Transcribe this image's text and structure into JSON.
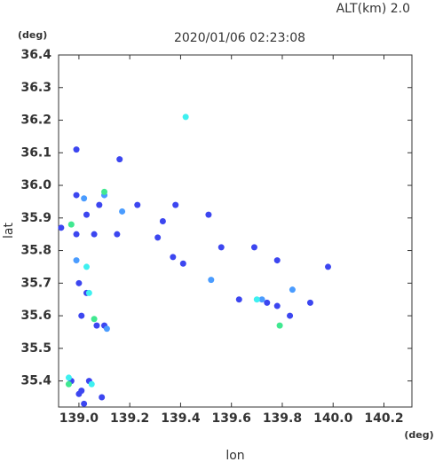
{
  "chart_data": {
    "type": "scatter",
    "title": "2020/01/06 02:23:08",
    "subtitle": "ALT(km) 2.0",
    "y_unit": "(deg)",
    "x_unit": "(deg)",
    "xlabel": "lon",
    "ylabel": "lat",
    "xlim": [
      138.92,
      140.31
    ],
    "ylim": [
      35.32,
      36.4
    ],
    "xticks": [
      {
        "value": 139,
        "label": "139.0"
      },
      139.2,
      139.4,
      139.6,
      139.8,
      {
        "value": 140,
        "label": "140.0"
      },
      140.2
    ],
    "yticks": [
      35.4,
      35.5,
      35.6,
      35.7,
      35.8,
      35.9,
      {
        "value": 36,
        "label": "36.0"
      },
      36.1,
      36.2,
      36.3,
      36.4
    ],
    "series": [
      {
        "color": "#3c46f0",
        "x": [
          138.99,
          138.99,
          139.03,
          138.93,
          138.99,
          139.06,
          139.0,
          139.03,
          139.01,
          139.07,
          139.1,
          138.97,
          139.01,
          139.04,
          139.0,
          139.02,
          139.09,
          139.16,
          139.23,
          139.15,
          139.33,
          139.38,
          139.31,
          139.51,
          139.37,
          139.41,
          139.56,
          139.69,
          139.78,
          139.98,
          139.78,
          139.74,
          139.91,
          139.83,
          139.63,
          139.08
        ],
        "y": [
          36.11,
          35.97,
          35.91,
          35.87,
          35.85,
          35.85,
          35.7,
          35.67,
          35.6,
          35.57,
          35.57,
          35.4,
          35.37,
          35.4,
          35.36,
          35.33,
          35.35,
          36.08,
          35.94,
          35.85,
          35.89,
          35.94,
          35.84,
          35.91,
          35.78,
          35.76,
          35.81,
          35.81,
          35.77,
          35.75,
          35.63,
          35.64,
          35.64,
          35.6,
          35.65,
          35.94
        ]
      },
      {
        "color": "#4a9cff",
        "x": [
          138.99,
          139.52,
          139.72,
          139.84,
          139.11,
          139.02,
          139.17,
          139.1
        ],
        "y": [
          35.77,
          35.71,
          35.65,
          35.68,
          35.56,
          35.96,
          35.92,
          35.97
        ]
      },
      {
        "color": "#3ef0f0",
        "x": [
          139.42,
          139.05,
          138.96,
          139.03,
          139.7,
          139.04
        ],
        "y": [
          36.21,
          35.39,
          35.41,
          35.75,
          35.65,
          35.67
        ]
      },
      {
        "color": "#40e890",
        "x": [
          139.1,
          139.06,
          138.97,
          139.79,
          138.96
        ],
        "y": [
          35.98,
          35.59,
          35.88,
          35.57,
          35.39
        ]
      }
    ]
  }
}
